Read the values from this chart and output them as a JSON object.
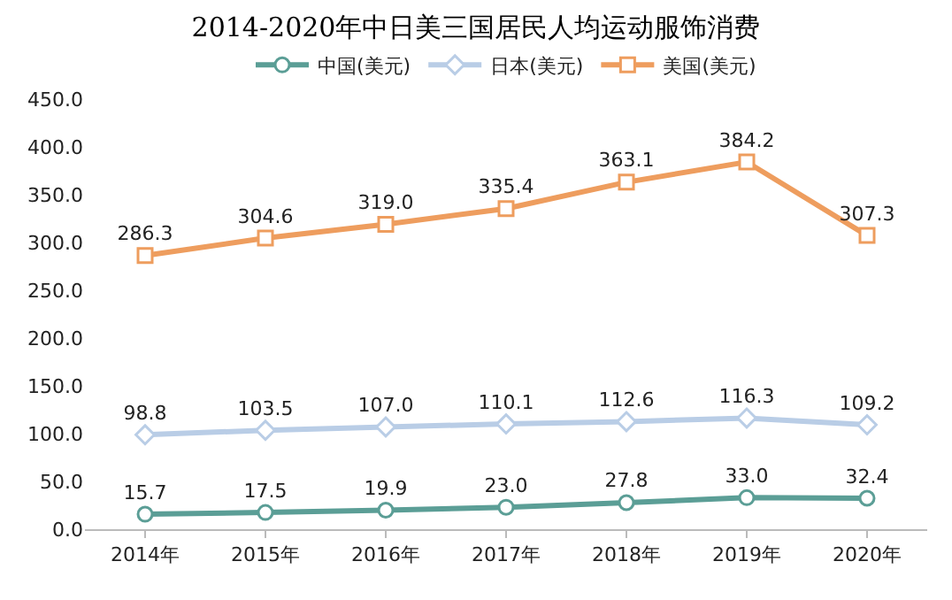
{
  "chart_data": {
    "type": "line",
    "title": "2014-2020年中日美三国居民人均运动服饰消费",
    "categories": [
      "2014年",
      "2015年",
      "2016年",
      "2017年",
      "2018年",
      "2019年",
      "2020年"
    ],
    "series": [
      {
        "name": "中国(美元)",
        "color": "#5b9e96",
        "marker": "circle",
        "values": [
          15.7,
          17.5,
          19.9,
          23.0,
          27.8,
          33.0,
          32.4
        ],
        "value_labels": [
          "15.7",
          "17.5",
          "19.9",
          "23.0",
          "27.8",
          "33.0",
          "32.4"
        ]
      },
      {
        "name": "日本(美元)",
        "color": "#b9cde6",
        "marker": "diamond",
        "values": [
          98.8,
          103.5,
          107.0,
          110.1,
          112.6,
          116.3,
          109.2
        ],
        "value_labels": [
          "98.8",
          "103.5",
          "107.0",
          "110.1",
          "112.6",
          "116.3",
          "109.2"
        ]
      },
      {
        "name": "美国(美元)",
        "color": "#ee9d5e",
        "marker": "square",
        "values": [
          286.3,
          304.6,
          319.0,
          335.4,
          363.1,
          384.2,
          307.3
        ],
        "value_labels": [
          "286.3",
          "304.6",
          "319.0",
          "335.4",
          "363.1",
          "384.2",
          "307.3"
        ]
      }
    ],
    "ylim": [
      0,
      450
    ],
    "yticks": [
      {
        "value": 0,
        "label": "0.0"
      },
      {
        "value": 50,
        "label": "50.0"
      },
      {
        "value": 100,
        "label": "100.0"
      },
      {
        "value": 150,
        "label": "150.0"
      },
      {
        "value": 200,
        "label": "200.0"
      },
      {
        "value": 250,
        "label": "250.0"
      },
      {
        "value": 300,
        "label": "300.0"
      },
      {
        "value": 350,
        "label": "350.0"
      },
      {
        "value": 400,
        "label": "400.0"
      },
      {
        "value": 450,
        "label": "450.0"
      }
    ],
    "legend": "top",
    "line_style": "solid"
  }
}
